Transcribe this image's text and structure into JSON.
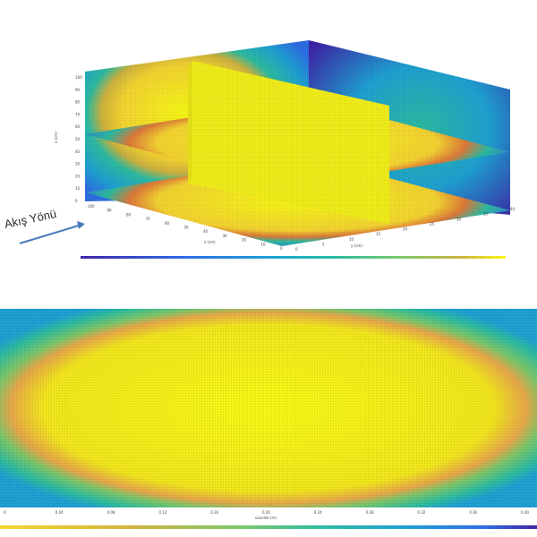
{
  "annotation": {
    "flow_direction": "Akış Yönü"
  },
  "chart_data": [
    {
      "type": "heatmap",
      "title": "",
      "xlabel": "y (cm)",
      "ylabel": "z (cm)",
      "zlabel": "x (cm)",
      "x_ticks": [
        "0",
        "5",
        "10",
        "15",
        "20",
        "25",
        "30",
        "35",
        "40"
      ],
      "y_ticks": [
        "0",
        "10",
        "20",
        "30",
        "40",
        "50",
        "60",
        "70",
        "80",
        "90",
        "100"
      ],
      "z_ticks": [
        "0",
        "10",
        "20",
        "30",
        "40",
        "50",
        "60",
        "70",
        "80",
        "90",
        "100"
      ],
      "slices": [
        "horizontal slice x=50",
        "horizontal slice x=25",
        "vertical slice y=20",
        "back wall",
        "side wall"
      ],
      "colormap": [
        "#3e26a8",
        "#2f6ee6",
        "#1fa2d4",
        "#2dbda2",
        "#7bc86c",
        "#d0b43f",
        "#f6d532",
        "#f9fb15"
      ],
      "colorbar": true
    },
    {
      "type": "heatmap",
      "title": "",
      "xlabel": "uzunluk (m)",
      "x_ticks": [
        "0",
        "0.04",
        "0.08",
        "0.12",
        "0.16",
        "0.20",
        "0.24",
        "0.28",
        "0.32",
        "0.36",
        "0.40"
      ],
      "colormap": [
        "#f9fb15",
        "#f6d532",
        "#d0b43f",
        "#7bc86c",
        "#2dbda2",
        "#1fa2d4",
        "#2f6ee6",
        "#3e26a8"
      ],
      "colorbar": true
    }
  ]
}
